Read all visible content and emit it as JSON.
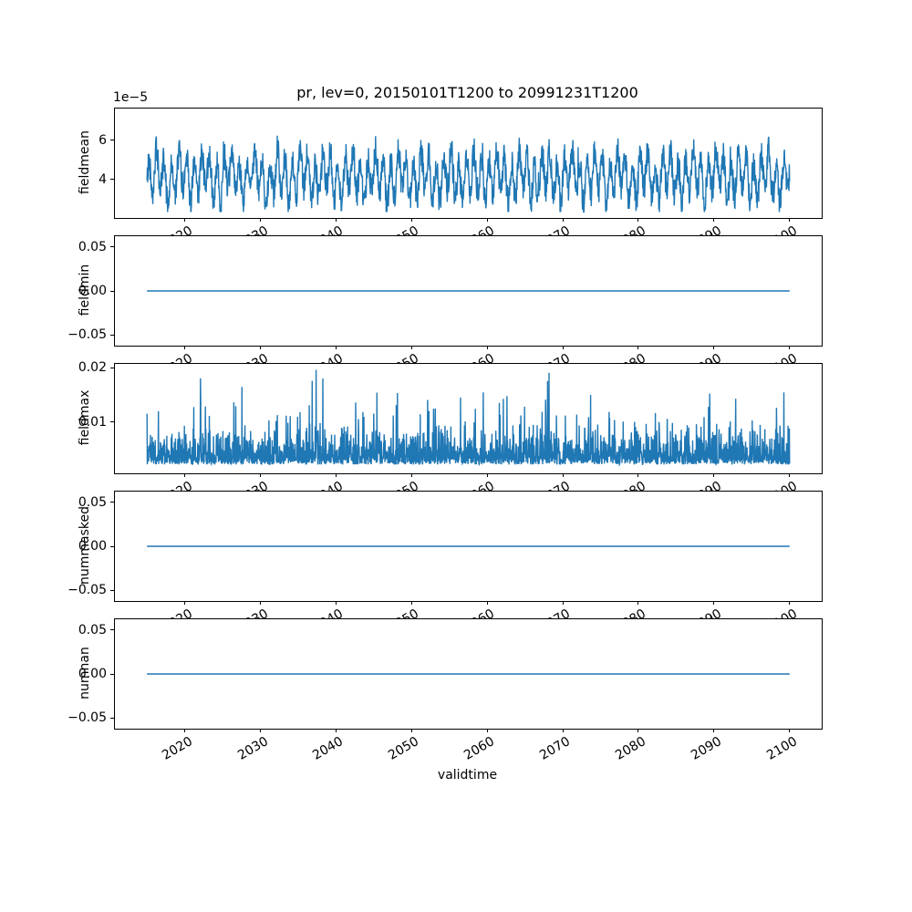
{
  "figure": {
    "background": "#ffffff",
    "line_color": "#1f77b4",
    "axis_color": "#000000"
  },
  "chart_data": {
    "type": "line",
    "title": "pr, lev=0, 20150101T1200 to 20991231T1200",
    "xlabel": "validtime",
    "grid": false,
    "legend": false,
    "x_range_years": [
      2015.0,
      2100.0
    ],
    "xlim": [
      2010.75,
      2104.25
    ],
    "xticks": [
      2020,
      2030,
      2040,
      2050,
      2060,
      2070,
      2080,
      2090,
      2100
    ],
    "xtick_labels": [
      "2020",
      "2030",
      "2040",
      "2050",
      "2060",
      "2070",
      "2080",
      "2090",
      "2100"
    ],
    "subplots": [
      {
        "ylabel": "fieldmean",
        "offset_text": "1e−5",
        "ylim": [
          2.05e-05,
          7.6e-05
        ],
        "yticks": [
          {
            "value": 4e-05,
            "label": "4"
          },
          {
            "value": 6e-05,
            "label": "6"
          }
        ],
        "series": {
          "kind": "seasonal_noise",
          "seed": 42,
          "points": 2000,
          "base": 4.15e-05,
          "seasonal_amp": 9.5e-06,
          "noise_amp": 7.5e-06,
          "clamp_min": 2.35e-05,
          "clamp_max": 7.05e-05,
          "summary": "dense noisy series with annual cycle, mean ~4e-5, mostly 2.5e-5 to 6e-5, spikes to ~7e-5"
        }
      },
      {
        "ylabel": "fieldmin",
        "offset_text": "",
        "ylim": [
          -0.062,
          0.062
        ],
        "yticks": [
          {
            "value": -0.05,
            "label": "−0.05"
          },
          {
            "value": 0.0,
            "label": "0.00"
          },
          {
            "value": 0.05,
            "label": "0.05"
          }
        ],
        "series": {
          "kind": "constant",
          "value": 0.0,
          "summary": "constant 0 from 2015 to 2100"
        }
      },
      {
        "ylabel": "fieldmax",
        "offset_text": "",
        "ylim": [
          0.0006,
          0.0207
        ],
        "yticks": [
          {
            "value": 0.01,
            "label": "0.01"
          },
          {
            "value": 0.02,
            "label": "0.02"
          }
        ],
        "series": {
          "kind": "exponential_noise",
          "seed": 7,
          "points": 2600,
          "base": 0.0022,
          "lambda": 0.0021,
          "spike_prob": 0.0012,
          "spike_min": 0.016,
          "spike_max": 0.0198,
          "clamp_min": 0.0018,
          "clamp_max": 0.0198,
          "summary": "dense noisy series mostly 0.002-0.013 with rare spikes up to ~0.02"
        }
      },
      {
        "ylabel": "nummasked",
        "offset_text": "",
        "ylim": [
          -0.062,
          0.062
        ],
        "yticks": [
          {
            "value": -0.05,
            "label": "−0.05"
          },
          {
            "value": 0.0,
            "label": "0.00"
          },
          {
            "value": 0.05,
            "label": "0.05"
          }
        ],
        "series": {
          "kind": "constant",
          "value": 0.0,
          "summary": "constant 0 from 2015 to 2100"
        }
      },
      {
        "ylabel": "numnan",
        "offset_text": "",
        "ylim": [
          -0.062,
          0.062
        ],
        "yticks": [
          {
            "value": -0.05,
            "label": "−0.05"
          },
          {
            "value": 0.0,
            "label": "0.00"
          },
          {
            "value": 0.05,
            "label": "0.05"
          }
        ],
        "series": {
          "kind": "constant",
          "value": 0.0,
          "summary": "constant 0 from 2015 to 2100"
        }
      }
    ]
  }
}
